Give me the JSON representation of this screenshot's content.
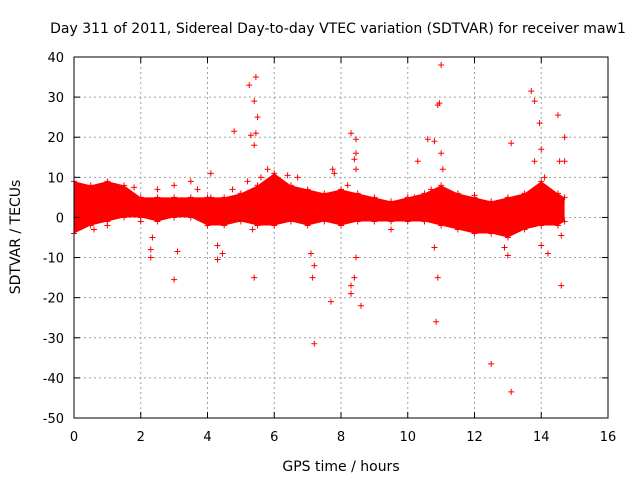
{
  "chart_data": {
    "type": "scatter",
    "title": "Day 311 of 2011, Sidereal Day-to-day VTEC variation (SDTVAR) for receiver maw1",
    "xlabel": "GPS time / hours",
    "ylabel": "SDTVAR / TECUs",
    "xlim": [
      0,
      16
    ],
    "ylim": [
      -50,
      40
    ],
    "xticks": [
      0,
      2,
      4,
      6,
      8,
      10,
      12,
      14,
      16
    ],
    "yticks": [
      40,
      30,
      20,
      10,
      0,
      -10,
      -20,
      -30,
      -40,
      -50
    ],
    "xtick_labels": [
      "0",
      "2",
      "4",
      "6",
      "8",
      "10",
      "12",
      "14",
      "16"
    ],
    "ytick_labels": [
      "40",
      "30",
      "20",
      "10",
      "0",
      "-10",
      "-20",
      "-30",
      "-40",
      "-50"
    ],
    "grid": true,
    "marker": "+",
    "color": "#ff0000",
    "band": {
      "x": [
        0.0,
        0.5,
        1.0,
        1.5,
        2.0,
        2.5,
        3.0,
        3.5,
        4.0,
        4.5,
        5.0,
        5.5,
        6.0,
        6.5,
        7.0,
        7.5,
        8.0,
        8.5,
        9.0,
        9.5,
        10.0,
        10.5,
        11.0,
        11.5,
        12.0,
        12.5,
        13.0,
        13.5,
        14.0,
        14.5,
        14.7
      ],
      "lower": [
        -4,
        -2,
        -1,
        0,
        0,
        -1,
        0,
        0,
        -2,
        -2,
        -1,
        -2,
        -2,
        -1,
        -2,
        -1,
        -2,
        -1,
        -1,
        -1,
        -1,
        -1,
        -2,
        -3,
        -4,
        -4,
        -5,
        -3,
        -2,
        -2,
        -1
      ],
      "upper": [
        9,
        8,
        9,
        8,
        5,
        5,
        5,
        5,
        5,
        5,
        6,
        8,
        11,
        8,
        7,
        6,
        7,
        6,
        5,
        4,
        5,
        6,
        8,
        6,
        5,
        4,
        5,
        6,
        9,
        6,
        5
      ]
    },
    "series": [
      {
        "name": "SDTVAR",
        "points": [
          [
            5.25,
            33.0
          ],
          [
            5.45,
            35.0
          ],
          [
            5.4,
            29.0
          ],
          [
            5.5,
            25.0
          ],
          [
            5.45,
            21.0
          ],
          [
            5.3,
            20.5
          ],
          [
            5.4,
            18.0
          ],
          [
            4.8,
            21.5
          ],
          [
            4.75,
            7.0
          ],
          [
            4.1,
            11.0
          ],
          [
            4.1,
            5.0
          ],
          [
            4.3,
            -7.0
          ],
          [
            4.3,
            -10.5
          ],
          [
            4.45,
            -9.0
          ],
          [
            3.1,
            4.0
          ],
          [
            3.0,
            8.0
          ],
          [
            3.5,
            9.0
          ],
          [
            3.0,
            -15.5
          ],
          [
            3.1,
            -8.5
          ],
          [
            2.3,
            -8.0
          ],
          [
            2.3,
            -10.0
          ],
          [
            2.35,
            -5.0
          ],
          [
            2.5,
            7.0
          ],
          [
            5.4,
            -15.0
          ],
          [
            5.35,
            -3.0
          ],
          [
            5.6,
            10.0
          ],
          [
            5.8,
            12.0
          ],
          [
            7.1,
            -9.0
          ],
          [
            7.2,
            -12.0
          ],
          [
            7.15,
            -15.0
          ],
          [
            7.2,
            -31.5
          ],
          [
            7.7,
            -21.0
          ],
          [
            7.75,
            12.0
          ],
          [
            7.8,
            11.0
          ],
          [
            8.3,
            21.0
          ],
          [
            8.45,
            19.5
          ],
          [
            8.45,
            16.0
          ],
          [
            8.4,
            14.5
          ],
          [
            8.45,
            12.0
          ],
          [
            8.3,
            -17.0
          ],
          [
            8.3,
            -19.0
          ],
          [
            8.4,
            -15.0
          ],
          [
            8.45,
            -10.0
          ],
          [
            8.6,
            -22.0
          ],
          [
            8.6,
            3.0
          ],
          [
            8.2,
            8.0
          ],
          [
            10.3,
            14.0
          ],
          [
            10.6,
            19.5
          ],
          [
            10.8,
            19.0
          ],
          [
            10.85,
            -26.0
          ],
          [
            10.9,
            28.0
          ],
          [
            10.95,
            28.5
          ],
          [
            11.0,
            38.0
          ],
          [
            11.0,
            16.0
          ],
          [
            11.05,
            12.0
          ],
          [
            10.9,
            -15.0
          ],
          [
            10.8,
            -7.5
          ],
          [
            10.7,
            7.0
          ],
          [
            12.5,
            -36.5
          ],
          [
            13.1,
            -43.5
          ],
          [
            13.1,
            18.5
          ],
          [
            13.7,
            31.5
          ],
          [
            13.8,
            29.0
          ],
          [
            13.95,
            23.5
          ],
          [
            13.8,
            14.0
          ],
          [
            14.0,
            17.0
          ],
          [
            14.0,
            -7.0
          ],
          [
            14.2,
            -9.0
          ],
          [
            14.5,
            25.5
          ],
          [
            14.55,
            14.0
          ],
          [
            14.7,
            20.0
          ],
          [
            14.7,
            14.0
          ],
          [
            14.6,
            -17.0
          ],
          [
            14.6,
            -4.5
          ],
          [
            14.1,
            10.0
          ],
          [
            13.0,
            -9.5
          ],
          [
            12.9,
            -7.5
          ],
          [
            6.4,
            10.5
          ],
          [
            6.7,
            10.0
          ],
          [
            5.2,
            9.0
          ],
          [
            3.7,
            7.0
          ],
          [
            1.8,
            7.5
          ],
          [
            0.3,
            6.5
          ],
          [
            0.6,
            -3.0
          ],
          [
            1.0,
            -2.0
          ],
          [
            2.0,
            -1.0
          ],
          [
            9.5,
            -3.0
          ],
          [
            10.2,
            5.0
          ],
          [
            11.4,
            -1.5
          ],
          [
            12.0,
            5.5
          ]
        ]
      }
    ]
  }
}
